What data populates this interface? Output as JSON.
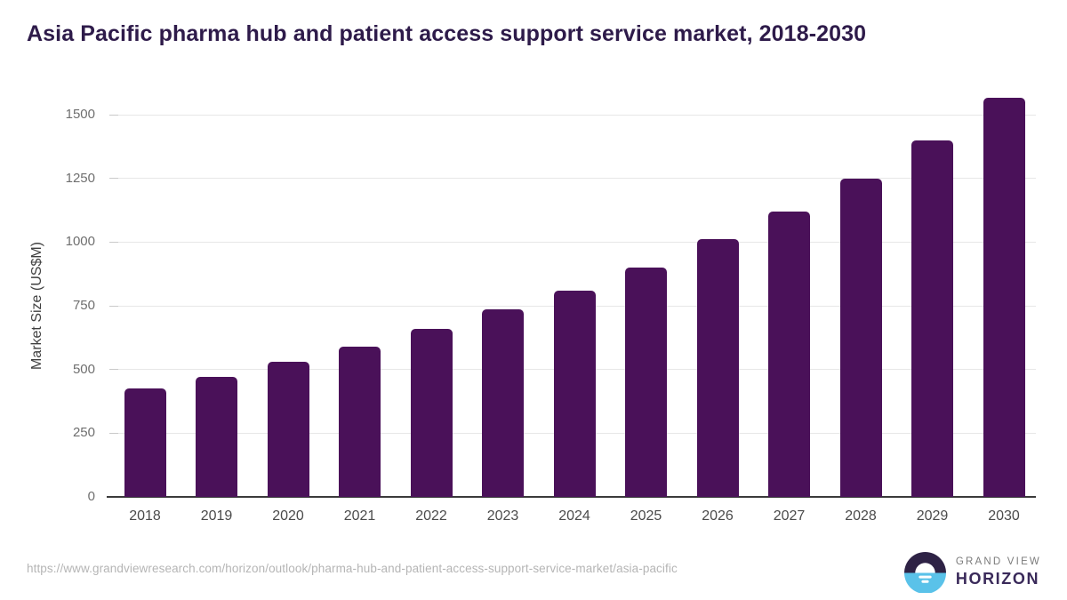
{
  "chart_data": {
    "type": "bar",
    "title": "Asia Pacific pharma hub and patient access support service market, 2018-2030",
    "categories": [
      "2018",
      "2019",
      "2020",
      "2021",
      "2022",
      "2023",
      "2024",
      "2025",
      "2026",
      "2027",
      "2028",
      "2029",
      "2030"
    ],
    "values": [
      425,
      470,
      530,
      590,
      660,
      735,
      810,
      900,
      1010,
      1120,
      1250,
      1400,
      1565
    ],
    "xlabel": "",
    "ylabel": "Market Size (US$M)",
    "ylim": [
      0,
      1500
    ],
    "y_ticks": [
      0,
      250,
      500,
      750,
      1000,
      1250,
      1500
    ],
    "grid": "horizontal",
    "legend": "none",
    "bar_color": "#4a1159"
  },
  "footer": {
    "source_url": "https://www.grandviewresearch.com/horizon/outlook/pharma-hub-and-patient-access-support-service-market/asia-pacific",
    "brand": {
      "line1": "GRAND VIEW",
      "line2": "HORIZON"
    }
  },
  "colors": {
    "title_text": "#2e1b4a",
    "bar": "#4a1159",
    "gridline": "#e7e7e7",
    "axis_line": "#3b3b3b",
    "y_tick_text": "#6f6f6f",
    "x_tick_text": "#4b4b4b",
    "source_text": "#b5b5b5",
    "logo_dark": "#2e2245",
    "logo_blue": "#5ac2e9",
    "brand_top_text": "#7b7b7b",
    "brand_bottom_text": "#3a2a5a"
  }
}
